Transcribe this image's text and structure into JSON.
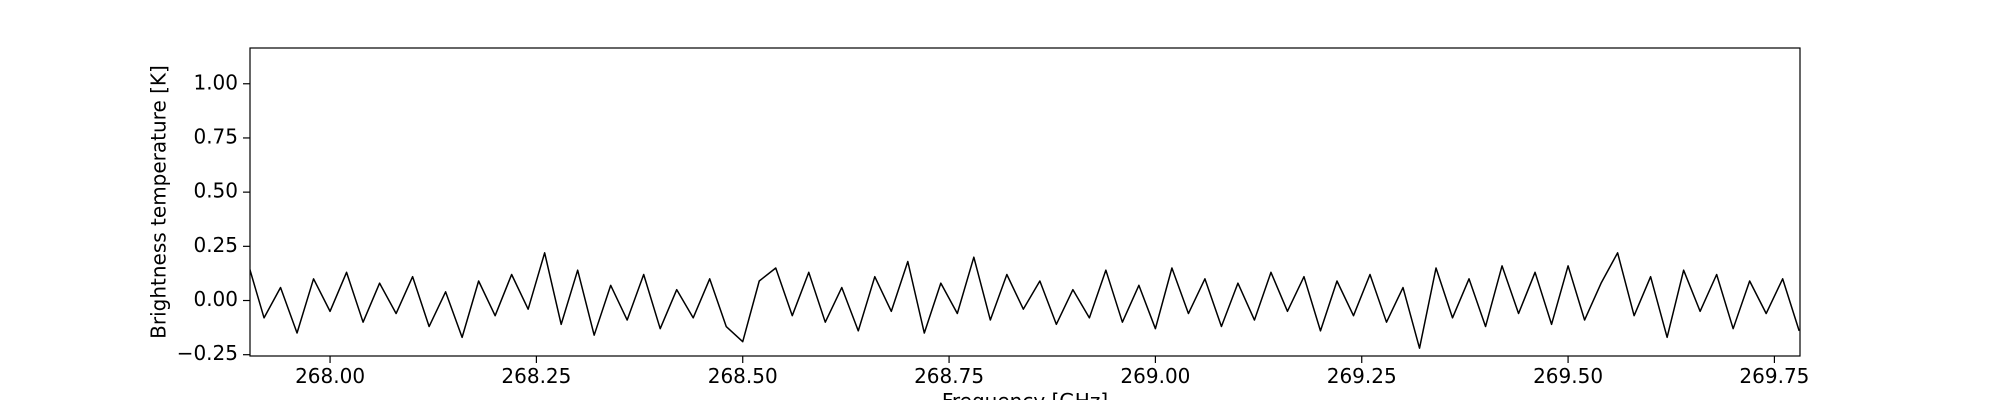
{
  "chart_data": {
    "type": "line",
    "xlabel": "Frequency [GHz]",
    "ylabel": "Brightness temperature [K]",
    "x": [
      267.9,
      267.92,
      267.94,
      267.96,
      267.98,
      268.0,
      268.02,
      268.04,
      268.06,
      268.08,
      268.1,
      268.12,
      268.14,
      268.16,
      268.18,
      268.2,
      268.22,
      268.24,
      268.26,
      268.28,
      268.3,
      268.32,
      268.34,
      268.36,
      268.38,
      268.4,
      268.42,
      268.44,
      268.46,
      268.48,
      268.5,
      268.52,
      268.54,
      268.56,
      268.58,
      268.6,
      268.62,
      268.64,
      268.66,
      268.68,
      268.7,
      268.72,
      268.74,
      268.76,
      268.78,
      268.8,
      268.82,
      268.84,
      268.86,
      268.88,
      268.9,
      268.92,
      268.94,
      268.96,
      268.98,
      269.0,
      269.02,
      269.04,
      269.06,
      269.08,
      269.1,
      269.12,
      269.14,
      269.16,
      269.18,
      269.2,
      269.22,
      269.24,
      269.26,
      269.28,
      269.3,
      269.32,
      269.34,
      269.36,
      269.38,
      269.4,
      269.42,
      269.44,
      269.46,
      269.48,
      269.5,
      269.52,
      269.54,
      269.56,
      269.58,
      269.6,
      269.62,
      269.64,
      269.66,
      269.68,
      269.7,
      269.72,
      269.74,
      269.76,
      269.78
    ],
    "series": [
      {
        "color": "#000000",
        "values": [
          0.18,
          -0.08,
          0.06,
          -0.15,
          0.1,
          -0.05,
          0.13,
          -0.1,
          0.08,
          -0.06,
          0.11,
          -0.12,
          0.04,
          -0.17,
          0.09,
          -0.07,
          0.12,
          -0.04,
          0.22,
          -0.11,
          0.14,
          -0.16,
          0.07,
          -0.09,
          0.12,
          -0.13,
          0.05,
          -0.08,
          0.1,
          -0.12,
          -0.19,
          0.09,
          0.15,
          -0.07,
          0.13,
          -0.1,
          0.06,
          -0.14,
          0.11,
          -0.05,
          0.18,
          -0.15,
          0.08,
          -0.06,
          0.2,
          -0.09,
          0.12,
          -0.04,
          0.09,
          -0.11,
          0.05,
          -0.08,
          0.14,
          -0.1,
          0.07,
          -0.13,
          0.15,
          -0.06,
          0.1,
          -0.12,
          0.08,
          -0.09,
          0.13,
          -0.05,
          0.11,
          -0.14,
          0.09,
          -0.07,
          0.12,
          -0.1,
          0.06,
          -0.22,
          0.15,
          -0.08,
          0.1,
          -0.12,
          0.16,
          -0.06,
          0.13,
          -0.11,
          0.16,
          -0.09,
          0.08,
          0.22,
          -0.07,
          0.11,
          -0.17,
          0.14,
          -0.05,
          0.12,
          -0.13,
          0.09,
          -0.06,
          0.1,
          -0.14
        ]
      }
    ],
    "xlim": [
      267.903,
      269.781
    ],
    "ylim": [
      -0.256,
      1.165
    ],
    "xticks": [
      {
        "value": 268.0,
        "label": "268.00"
      },
      {
        "value": 268.25,
        "label": "268.25"
      },
      {
        "value": 268.5,
        "label": "268.50"
      },
      {
        "value": 268.75,
        "label": "268.75"
      },
      {
        "value": 269.0,
        "label": "269.00"
      },
      {
        "value": 269.25,
        "label": "269.25"
      },
      {
        "value": 269.5,
        "label": "269.50"
      },
      {
        "value": 269.75,
        "label": "269.75"
      }
    ],
    "yticks": [
      {
        "value": -0.25,
        "label": "−0.25"
      },
      {
        "value": 0,
        "label": "0.00"
      },
      {
        "value": 0.25,
        "label": "0.25"
      },
      {
        "value": 0.5,
        "label": "0.50"
      },
      {
        "value": 0.75,
        "label": "0.75"
      },
      {
        "value": 1.0,
        "label": "1.00"
      }
    ],
    "grid": false
  }
}
